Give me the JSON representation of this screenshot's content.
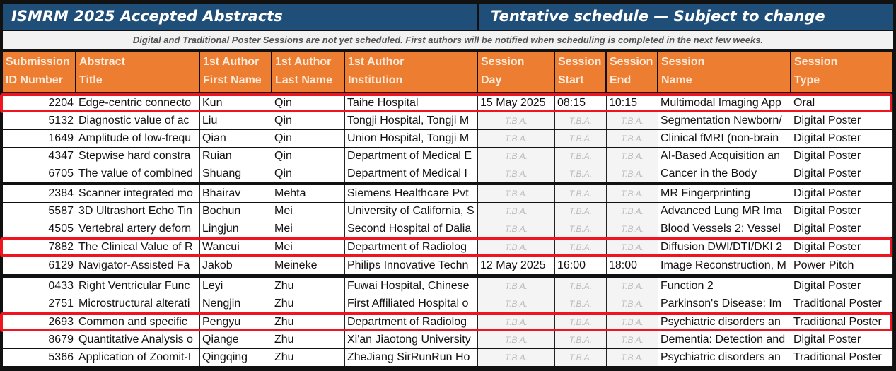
{
  "title_left": "ISMRM 2025 Accepted Abstracts",
  "title_right": "Tentative schedule — Subject to change",
  "notice": "Digital and Traditional Poster Sessions are not yet scheduled. First authors will be notified when scheduling is completed in the next few weeks.",
  "columns": [
    {
      "l1": "Submission",
      "l2": "ID Number"
    },
    {
      "l1": "Abstract",
      "l2": "Title"
    },
    {
      "l1": "1st Author",
      "l2": "First Name"
    },
    {
      "l1": "1st Author",
      "l2": "Last Name"
    },
    {
      "l1": "1st Author",
      "l2": "Institution"
    },
    {
      "l1": "Session",
      "l2": "Day"
    },
    {
      "l1": "Session",
      "l2": "Start"
    },
    {
      "l1": "Session",
      "l2": "End"
    },
    {
      "l1": "Session",
      "l2": "Name"
    },
    {
      "l1": "Session",
      "l2": "Type"
    }
  ],
  "colors": {
    "title_bg": "#1f4e79",
    "header_bg": "#ed7d31",
    "highlight": "#f0141e"
  },
  "rows": [
    {
      "id": "2204",
      "title": "Edge-centric connecto",
      "first": "Kun",
      "last": "Qin",
      "inst": "Taihe Hospital",
      "day": "15 May 2025",
      "start": "08:15",
      "end": "10:15",
      "session": "Multimodal Imaging App",
      "type": "Oral",
      "highlighted": true
    },
    {
      "id": "5132",
      "title": "Diagnostic value of ac",
      "first": "Liu",
      "last": "Qin",
      "inst": "Tongji Hospital, Tongji M",
      "day": "T.B.A.",
      "start": "T.B.A.",
      "end": "T.B.A.",
      "session": "Segmentation Newborn/",
      "type": "Digital Poster"
    },
    {
      "id": "1649",
      "title": "Amplitude of low-frequ",
      "first": "Qian",
      "last": "Qin",
      "inst": "Union Hospital, Tongji M",
      "day": "T.B.A.",
      "start": "T.B.A.",
      "end": "T.B.A.",
      "session": "Clinical fMRI (non-brain",
      "type": "Digital Poster"
    },
    {
      "id": "4347",
      "title": "Stepwise hard constra",
      "first": "Ruian",
      "last": "Qin",
      "inst": "Department of Medical E",
      "day": "T.B.A.",
      "start": "T.B.A.",
      "end": "T.B.A.",
      "session": "AI-Based Acquisition an",
      "type": "Digital Poster"
    },
    {
      "id": "6705",
      "title": "The value of combined",
      "first": "Shuang",
      "last": "Qin",
      "inst": "Department of Medical I",
      "day": "T.B.A.",
      "start": "T.B.A.",
      "end": "T.B.A.",
      "session": "Cancer in the Body",
      "type": "Digital Poster"
    },
    {
      "id": "2384",
      "title": "Scanner integrated mo",
      "first": "Bhairav",
      "last": "Mehta",
      "inst": "Siemens Healthcare Pvt",
      "day": "T.B.A.",
      "start": "T.B.A.",
      "end": "T.B.A.",
      "session": "MR Fingerprinting",
      "type": "Digital Poster"
    },
    {
      "id": "5587",
      "title": "3D Ultrashort Echo Tin",
      "first": "Bochun",
      "last": "Mei",
      "inst": "University of California, S",
      "day": "T.B.A.",
      "start": "T.B.A.",
      "end": "T.B.A.",
      "session": "Advanced Lung MR Ima",
      "type": "Digital Poster"
    },
    {
      "id": "4505",
      "title": "Vertebral artery deforn",
      "first": "Lingjun",
      "last": "Mei",
      "inst": "Second Hospital of Dalia",
      "day": "T.B.A.",
      "start": "T.B.A.",
      "end": "T.B.A.",
      "session": "Blood Vessels 2: Vessel",
      "type": "Digital Poster"
    },
    {
      "id": "7882",
      "title": "The Clinical Value of R",
      "first": "Wancui",
      "last": "Mei",
      "inst": "Department of Radiolog",
      "day": "T.B.A.",
      "start": "T.B.A.",
      "end": "T.B.A.",
      "session": "Diffusion DWI/DTI/DKI 2",
      "type": "Digital Poster",
      "highlighted": true
    },
    {
      "id": "6129",
      "title": "Navigator-Assisted Fa",
      "first": "Jakob",
      "last": "Meineke",
      "inst": "Philips Innovative Techn",
      "day": "12 May 2025",
      "start": "16:00",
      "end": "18:00",
      "session": "Image Reconstruction, M",
      "type": "Power Pitch"
    },
    {
      "id": "0433",
      "title": "Right Ventricular Func",
      "first": "Leyi",
      "last": "Zhu",
      "inst": "Fuwai Hospital, Chinese",
      "day": "T.B.A.",
      "start": "T.B.A.",
      "end": "T.B.A.",
      "session": "Function 2",
      "type": "Digital Poster"
    },
    {
      "id": "2751",
      "title": "Microstructural alterati",
      "first": "Nengjin",
      "last": "Zhu",
      "inst": "First Affiliated Hospital o",
      "day": "T.B.A.",
      "start": "T.B.A.",
      "end": "T.B.A.",
      "session": "Parkinson's Disease: Im",
      "type": "Traditional Poster"
    },
    {
      "id": "2693",
      "title": "Common and specific",
      "first": "Pengyu",
      "last": "Zhu",
      "inst": "Department of Radiolog",
      "day": "T.B.A.",
      "start": "T.B.A.",
      "end": "T.B.A.",
      "session": "Psychiatric disorders an",
      "type": "Traditional Poster",
      "highlighted": true
    },
    {
      "id": "8679",
      "title": "Quantitative Analysis o",
      "first": "Qiange",
      "last": "Zhu",
      "inst": "Xi'an Jiaotong University",
      "day": "T.B.A.",
      "start": "T.B.A.",
      "end": "T.B.A.",
      "session": "Dementia: Detection and",
      "type": "Digital Poster"
    },
    {
      "id": "5366",
      "title": "Application of Zoomit-I",
      "first": "Qingqing",
      "last": "Zhu",
      "inst": "ZheJiang SirRunRun Ho",
      "day": "T.B.A.",
      "start": "T.B.A.",
      "end": "T.B.A.",
      "session": "Psychiatric disorders an",
      "type": "Traditional Poster"
    }
  ]
}
